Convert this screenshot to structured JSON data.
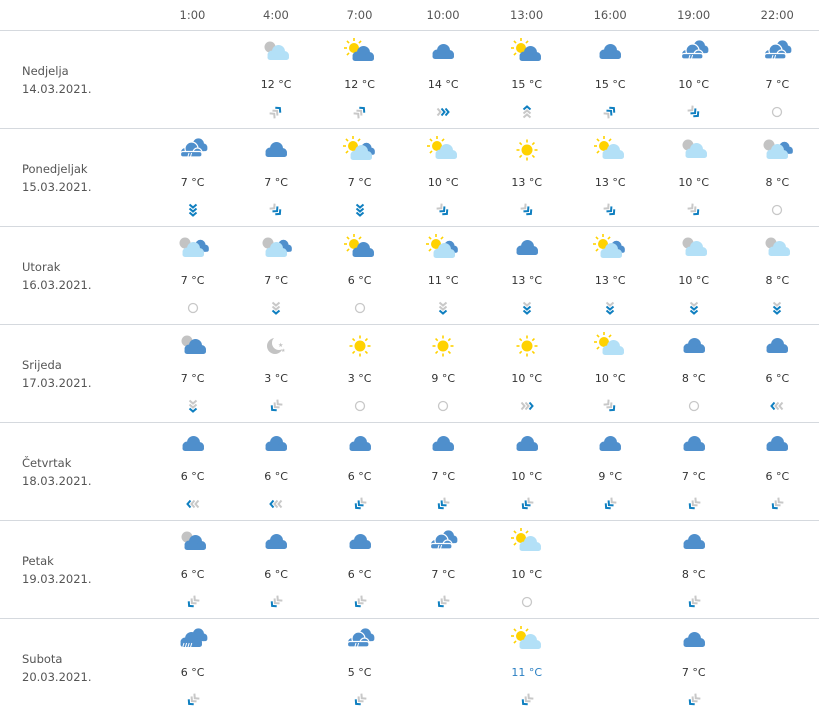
{
  "hours": [
    "1:00",
    "4:00",
    "7:00",
    "10:00",
    "13:00",
    "16:00",
    "19:00",
    "22:00"
  ],
  "colors": {
    "cloud_dark": "#4f8fcc",
    "cloud_light": "#b3e0f7",
    "sun": "#ffd200",
    "moon": "#c3c3c3",
    "wind_active": "#0f7fc0",
    "wind_idle": "#c8c8c8"
  },
  "days": [
    {
      "name": "Nedjelja",
      "date": "14.03.2021.",
      "cells": [
        null,
        {
          "icon": "moon-light-cloud",
          "temp": "12 °C",
          "wind": {
            "dir": "NE",
            "strength": 1
          }
        },
        {
          "icon": "sun-cloud",
          "temp": "12 °C",
          "wind": {
            "dir": "NE",
            "strength": 1
          }
        },
        {
          "icon": "cloud",
          "temp": "14 °C",
          "wind": {
            "dir": "E",
            "strength": 2
          }
        },
        {
          "icon": "sun-cloud",
          "temp": "15 °C",
          "wind": {
            "dir": "N",
            "strength": 1
          }
        },
        {
          "icon": "cloud",
          "temp": "15 °C",
          "wind": {
            "dir": "NE",
            "strength": 2
          }
        },
        {
          "icon": "rain",
          "temp": "10 °C",
          "wind": {
            "dir": "SE",
            "strength": 2
          }
        },
        {
          "icon": "rain",
          "temp": "7 °C",
          "wind": {
            "dir": "calm",
            "strength": 0
          }
        }
      ]
    },
    {
      "name": "Ponedjeljak",
      "date": "15.03.2021.",
      "cells": [
        {
          "icon": "rain",
          "temp": "7 °C",
          "wind": {
            "dir": "S",
            "strength": 3
          }
        },
        {
          "icon": "cloud",
          "temp": "7 °C",
          "wind": {
            "dir": "SE",
            "strength": 2
          }
        },
        {
          "icon": "sun-light-cloud-cloud",
          "temp": "7 °C",
          "wind": {
            "dir": "S",
            "strength": 3
          }
        },
        {
          "icon": "sun-light-cloud",
          "temp": "10 °C",
          "wind": {
            "dir": "SE",
            "strength": 2
          }
        },
        {
          "icon": "sun",
          "temp": "13 °C",
          "wind": {
            "dir": "SE",
            "strength": 2
          }
        },
        {
          "icon": "sun-light-cloud",
          "temp": "13 °C",
          "wind": {
            "dir": "SE",
            "strength": 2
          }
        },
        {
          "icon": "moon-light-cloud",
          "temp": "10 °C",
          "wind": {
            "dir": "SE",
            "strength": 1
          }
        },
        {
          "icon": "moon-light-cloud-cloud",
          "temp": "8 °C",
          "wind": {
            "dir": "calm",
            "strength": 0
          }
        }
      ]
    },
    {
      "name": "Utorak",
      "date": "16.03.2021.",
      "cells": [
        {
          "icon": "moon-light-cloud-cloud",
          "temp": "7 °C",
          "wind": {
            "dir": "calm",
            "strength": 0
          }
        },
        {
          "icon": "moon-light-cloud-cloud",
          "temp": "7 °C",
          "wind": {
            "dir": "S",
            "strength": 1
          }
        },
        {
          "icon": "sun-cloud",
          "temp": "6 °C",
          "wind": {
            "dir": "calm",
            "strength": 0
          }
        },
        {
          "icon": "sun-light-cloud-cloud",
          "temp": "11 °C",
          "wind": {
            "dir": "S",
            "strength": 1
          }
        },
        {
          "icon": "cloud",
          "temp": "13 °C",
          "wind": {
            "dir": "S",
            "strength": 2
          }
        },
        {
          "icon": "sun-light-cloud-cloud",
          "temp": "13 °C",
          "wind": {
            "dir": "S",
            "strength": 2
          }
        },
        {
          "icon": "moon-light-cloud",
          "temp": "10 °C",
          "wind": {
            "dir": "S",
            "strength": 2
          }
        },
        {
          "icon": "moon-light-cloud",
          "temp": "8 °C",
          "wind": {
            "dir": "S",
            "strength": 2
          }
        }
      ]
    },
    {
      "name": "Srijeda",
      "date": "17.03.2021.",
      "cells": [
        {
          "icon": "moon-cloud",
          "temp": "7 °C",
          "wind": {
            "dir": "S",
            "strength": 1
          }
        },
        {
          "icon": "moon",
          "temp": "3 °C",
          "wind": {
            "dir": "SW",
            "strength": 1
          }
        },
        {
          "icon": "sun",
          "temp": "3 °C",
          "wind": {
            "dir": "calm",
            "strength": 0
          }
        },
        {
          "icon": "sun",
          "temp": "9 °C",
          "wind": {
            "dir": "calm",
            "strength": 0
          }
        },
        {
          "icon": "sun",
          "temp": "10 °C",
          "wind": {
            "dir": "E",
            "strength": 1
          }
        },
        {
          "icon": "sun-light-cloud",
          "temp": "10 °C",
          "wind": {
            "dir": "SE",
            "strength": 1
          }
        },
        {
          "icon": "cloud",
          "temp": "8 °C",
          "wind": {
            "dir": "calm",
            "strength": 0
          }
        },
        {
          "icon": "cloud",
          "temp": "6 °C",
          "wind": {
            "dir": "W",
            "strength": 1
          }
        }
      ]
    },
    {
      "name": "Četvrtak",
      "date": "18.03.2021.",
      "cells": [
        {
          "icon": "cloud",
          "temp": "6 °C",
          "wind": {
            "dir": "W",
            "strength": 1
          }
        },
        {
          "icon": "cloud",
          "temp": "6 °C",
          "wind": {
            "dir": "W",
            "strength": 1
          }
        },
        {
          "icon": "cloud",
          "temp": "6 °C",
          "wind": {
            "dir": "SW",
            "strength": 2
          }
        },
        {
          "icon": "cloud",
          "temp": "7 °C",
          "wind": {
            "dir": "SW",
            "strength": 2
          }
        },
        {
          "icon": "cloud",
          "temp": "10 °C",
          "wind": {
            "dir": "SW",
            "strength": 2
          }
        },
        {
          "icon": "cloud",
          "temp": "9 °C",
          "wind": {
            "dir": "SW",
            "strength": 2
          }
        },
        {
          "icon": "cloud",
          "temp": "7 °C",
          "wind": {
            "dir": "SW",
            "strength": 1
          }
        },
        {
          "icon": "cloud",
          "temp": "6 °C",
          "wind": {
            "dir": "SW",
            "strength": 1
          }
        }
      ]
    },
    {
      "name": "Petak",
      "date": "19.03.2021.",
      "cells": [
        {
          "icon": "moon-cloud",
          "temp": "6 °C",
          "wind": {
            "dir": "SW",
            "strength": 1
          }
        },
        {
          "icon": "cloud",
          "temp": "6 °C",
          "wind": {
            "dir": "SW",
            "strength": 1
          }
        },
        {
          "icon": "cloud",
          "temp": "6 °C",
          "wind": {
            "dir": "SW",
            "strength": 1
          }
        },
        {
          "icon": "rain",
          "temp": "7 °C",
          "wind": {
            "dir": "SW",
            "strength": 1
          }
        },
        {
          "icon": "sun-light-cloud",
          "temp": "10 °C",
          "wind": {
            "dir": "calm",
            "strength": 0
          }
        },
        null,
        {
          "icon": "cloud",
          "temp": "8 °C",
          "wind": {
            "dir": "SW",
            "strength": 1
          }
        },
        null
      ]
    },
    {
      "name": "Subota",
      "date": "20.03.2021.",
      "cells": [
        {
          "icon": "heavy-rain",
          "temp": "6 °C",
          "wind": {
            "dir": "SW",
            "strength": 1
          }
        },
        null,
        {
          "icon": "rain",
          "temp": "5 °C",
          "wind": {
            "dir": "SW",
            "strength": 1
          }
        },
        null,
        {
          "icon": "sun-light-cloud",
          "temp": "11 °C",
          "highlight": true,
          "wind": {
            "dir": "SW",
            "strength": 1
          }
        },
        null,
        {
          "icon": "cloud",
          "temp": "7 °C",
          "wind": {
            "dir": "SW",
            "strength": 1
          }
        },
        null
      ]
    }
  ]
}
